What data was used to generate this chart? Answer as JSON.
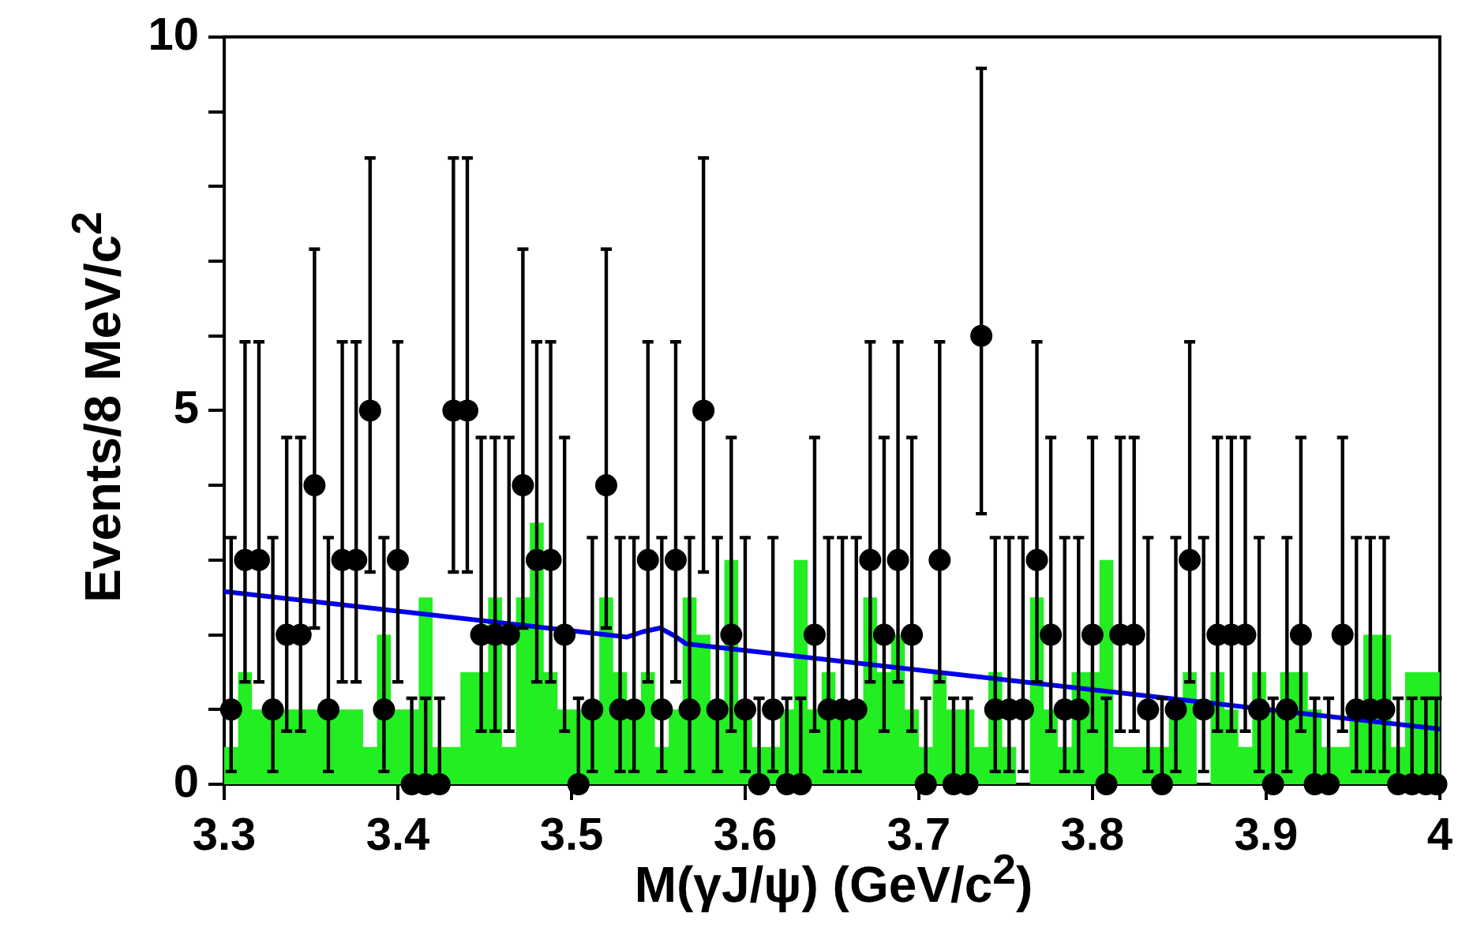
{
  "chart_data": {
    "type": "scatter",
    "xlabel": "M(γJ/ψ) (GeV/c$^{2}$)",
    "ylabel": "Events/8 MeV/c$^{2}$",
    "xlim": [
      3.3,
      4.0
    ],
    "xticks": [
      3.3,
      3.4,
      3.5,
      3.6,
      3.7,
      3.8,
      3.9,
      4
    ],
    "ylim": [
      0,
      10
    ],
    "yticks": [
      0,
      {
        "value": 1,
        "label": null
      },
      {
        "value": 2,
        "label": null
      },
      {
        "value": 3,
        "label": null
      },
      {
        "value": 4,
        "label": null
      },
      5,
      {
        "value": 6,
        "label": null
      },
      {
        "value": 7,
        "label": null
      },
      {
        "value": 8,
        "label": null
      },
      {
        "value": 9,
        "label": null
      },
      10
    ],
    "grid": false,
    "series": [
      {
        "type": "histogram",
        "color": "#22ee22",
        "bins": [
          3.3,
          3.308,
          3.316,
          3.324,
          3.332,
          3.34,
          3.348,
          3.356,
          3.364,
          3.372,
          3.38,
          3.388,
          3.396,
          3.404,
          3.412,
          3.42,
          3.428,
          3.436,
          3.444,
          3.452,
          3.46,
          3.468,
          3.476,
          3.484,
          3.492,
          3.5,
          3.508,
          3.516,
          3.524,
          3.532,
          3.54,
          3.548,
          3.556,
          3.564,
          3.572,
          3.58,
          3.588,
          3.596,
          3.604,
          3.612,
          3.62,
          3.628,
          3.636,
          3.644,
          3.652,
          3.66,
          3.668,
          3.676,
          3.684,
          3.692,
          3.7,
          3.708,
          3.716,
          3.724,
          3.732,
          3.74,
          3.748,
          3.756,
          3.764,
          3.772,
          3.78,
          3.788,
          3.796,
          3.804,
          3.812,
          3.82,
          3.828,
          3.836,
          3.844,
          3.852,
          3.86,
          3.868,
          3.876,
          3.884,
          3.892,
          3.9,
          3.908,
          3.916,
          3.924,
          3.932,
          3.94,
          3.948,
          3.956,
          3.964,
          3.972,
          3.98,
          3.988,
          3.996,
          4.0
        ],
        "values": [
          0.5,
          1.5,
          1,
          1,
          1,
          1,
          1,
          1,
          1,
          1,
          0.5,
          2,
          1,
          1,
          2.5,
          0.5,
          0.5,
          1.5,
          1.5,
          2.5,
          0.5,
          2.5,
          3.5,
          1.5,
          1,
          1,
          1,
          2.5,
          1.5,
          1,
          1.5,
          0.5,
          1,
          2.5,
          2,
          1,
          3,
          1,
          0.5,
          0.5,
          1,
          3,
          1,
          1.5,
          1,
          1,
          2.5,
          1.5,
          2,
          1,
          0.5,
          1.5,
          1,
          1,
          0.5,
          1.5,
          0.5,
          0,
          2.5,
          1,
          0.5,
          1.5,
          1.5,
          3,
          0.5,
          0.5,
          0.5,
          0.5,
          1,
          1.5,
          0,
          1.5,
          1,
          0.5,
          1.5,
          1,
          1.5,
          1.5,
          1,
          0.5,
          0.5,
          1,
          2,
          2,
          0.5,
          1.5,
          1.5,
          1.5
        ]
      },
      {
        "color": "#000000",
        "marker": "circle",
        "x": [
          3.304,
          3.312,
          3.32,
          3.328,
          3.336,
          3.344,
          3.352,
          3.36,
          3.368,
          3.376,
          3.384,
          3.392,
          3.4,
          3.408,
          3.416,
          3.424,
          3.432,
          3.44,
          3.448,
          3.456,
          3.464,
          3.472,
          3.48,
          3.488,
          3.496,
          3.504,
          3.512,
          3.52,
          3.528,
          3.536,
          3.544,
          3.552,
          3.56,
          3.568,
          3.576,
          3.584,
          3.592,
          3.6,
          3.608,
          3.616,
          3.624,
          3.632,
          3.64,
          3.648,
          3.656,
          3.664,
          3.672,
          3.68,
          3.688,
          3.696,
          3.704,
          3.712,
          3.72,
          3.728,
          3.736,
          3.744,
          3.752,
          3.76,
          3.768,
          3.776,
          3.784,
          3.792,
          3.8,
          3.808,
          3.816,
          3.824,
          3.832,
          3.84,
          3.848,
          3.856,
          3.864,
          3.872,
          3.88,
          3.888,
          3.896,
          3.904,
          3.912,
          3.92,
          3.928,
          3.936,
          3.944,
          3.952,
          3.96,
          3.968,
          3.976,
          3.984,
          3.992,
          3.998
        ],
        "values": [
          1,
          3,
          3,
          1,
          2,
          2,
          4,
          1,
          3,
          3,
          5,
          1,
          3,
          0,
          0,
          0,
          5,
          5,
          2,
          2,
          2,
          4,
          3,
          3,
          2,
          0,
          1,
          4,
          1,
          1,
          3,
          1,
          3,
          1,
          5,
          1,
          2,
          1,
          0,
          1,
          0,
          0,
          2,
          1,
          1,
          1,
          3,
          2,
          3,
          2,
          0,
          3,
          0,
          0,
          6,
          1,
          1,
          1,
          3,
          2,
          1,
          1,
          2,
          0,
          2,
          2,
          1,
          0,
          1,
          3,
          1,
          2,
          2,
          2,
          1,
          0,
          1,
          2,
          0,
          0,
          2,
          1,
          1,
          1,
          0,
          0,
          0,
          0
        ],
        "errors": [
          [
            0.17,
            3.3
          ],
          [
            1.37,
            5.92
          ],
          [
            1.37,
            5.92
          ],
          [
            0.17,
            3.3
          ],
          [
            0.71,
            4.64
          ],
          [
            0.71,
            4.64
          ],
          [
            2.09,
            7.16
          ],
          [
            0.17,
            3.3
          ],
          [
            1.37,
            5.92
          ],
          [
            1.37,
            5.92
          ],
          [
            2.84,
            8.38
          ],
          [
            0.17,
            3.3
          ],
          [
            1.37,
            5.92
          ],
          [
            0,
            1.15
          ],
          [
            0,
            1.15
          ],
          [
            0,
            1.15
          ],
          [
            2.84,
            8.38
          ],
          [
            2.84,
            8.38
          ],
          [
            0.71,
            4.64
          ],
          [
            0.71,
            4.64
          ],
          [
            0.71,
            4.64
          ],
          [
            2.09,
            7.16
          ],
          [
            1.37,
            5.92
          ],
          [
            1.37,
            5.92
          ],
          [
            0.71,
            4.64
          ],
          [
            0,
            1.15
          ],
          [
            0.17,
            3.3
          ],
          [
            2.09,
            7.16
          ],
          [
            0.17,
            3.3
          ],
          [
            0.17,
            3.3
          ],
          [
            1.37,
            5.92
          ],
          [
            0.17,
            3.3
          ],
          [
            1.37,
            5.92
          ],
          [
            0.17,
            3.3
          ],
          [
            2.84,
            8.38
          ],
          [
            0.17,
            3.3
          ],
          [
            0.71,
            4.64
          ],
          [
            0.17,
            3.3
          ],
          [
            0,
            1.15
          ],
          [
            0.17,
            3.3
          ],
          [
            0,
            1.15
          ],
          [
            0,
            1.15
          ],
          [
            0.71,
            4.64
          ],
          [
            0.17,
            3.3
          ],
          [
            0.17,
            3.3
          ],
          [
            0.17,
            3.3
          ],
          [
            1.37,
            5.92
          ],
          [
            0.71,
            4.64
          ],
          [
            1.37,
            5.92
          ],
          [
            0.71,
            4.64
          ],
          [
            0,
            1.15
          ],
          [
            1.37,
            5.92
          ],
          [
            0,
            1.15
          ],
          [
            0,
            1.15
          ],
          [
            3.62,
            9.58
          ],
          [
            0.17,
            3.3
          ],
          [
            0.17,
            3.3
          ],
          [
            0.17,
            3.3
          ],
          [
            1.37,
            5.92
          ],
          [
            0.71,
            4.64
          ],
          [
            0.17,
            3.3
          ],
          [
            0.17,
            3.3
          ],
          [
            0.71,
            4.64
          ],
          [
            0,
            1.15
          ],
          [
            0.71,
            4.64
          ],
          [
            0.71,
            4.64
          ],
          [
            0.17,
            3.3
          ],
          [
            0,
            1.15
          ],
          [
            0.17,
            3.3
          ],
          [
            1.37,
            5.92
          ],
          [
            0.17,
            3.3
          ],
          [
            0.71,
            4.64
          ],
          [
            0.71,
            4.64
          ],
          [
            0.71,
            4.64
          ],
          [
            0.17,
            3.3
          ],
          [
            0,
            1.15
          ],
          [
            0.17,
            3.3
          ],
          [
            0.71,
            4.64
          ],
          [
            0,
            1.15
          ],
          [
            0,
            1.15
          ],
          [
            0.71,
            4.64
          ],
          [
            0.17,
            3.3
          ],
          [
            0.17,
            3.3
          ],
          [
            0.17,
            3.3
          ],
          [
            0,
            1.15
          ],
          [
            0,
            1.15
          ],
          [
            0,
            1.15
          ],
          [
            0,
            1.15
          ]
        ]
      },
      {
        "type": "line",
        "color": "#0000ee",
        "x": [
          3.3,
          3.532,
          3.541,
          3.551,
          3.559,
          3.566,
          4.0
        ],
        "values": [
          2.58,
          1.97,
          2.04,
          2.09,
          1.99,
          1.88,
          0.74
        ]
      }
    ]
  }
}
